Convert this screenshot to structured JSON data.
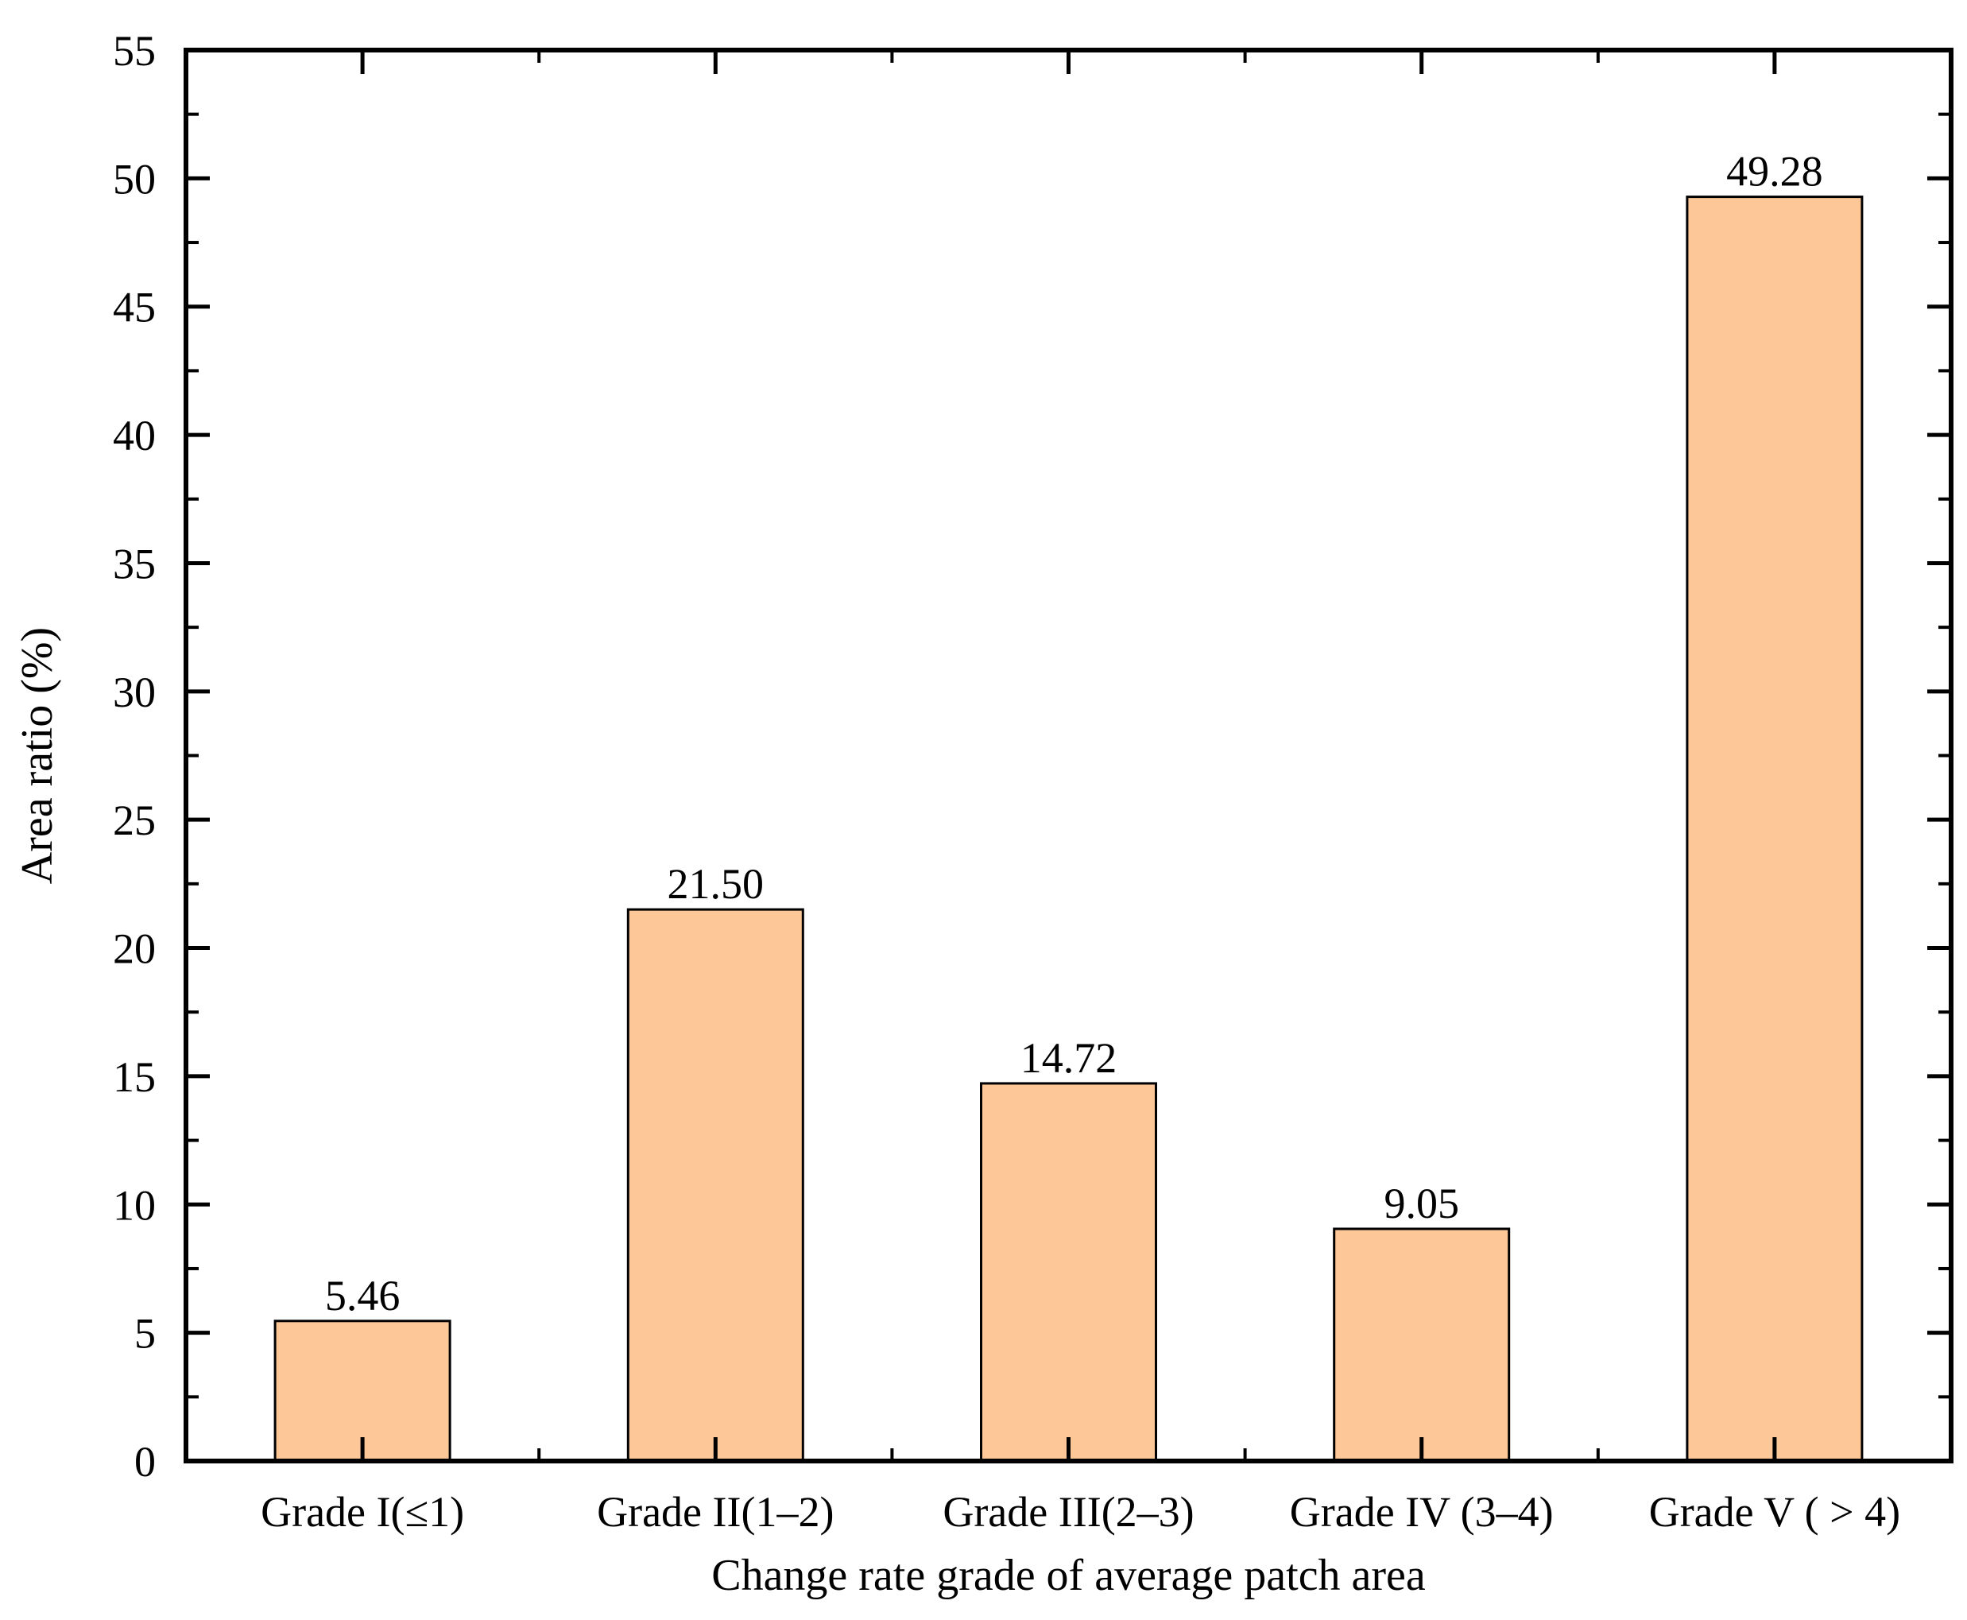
{
  "chart_data": {
    "type": "bar",
    "title": "",
    "xlabel": "Change rate grade of average patch area",
    "ylabel": "Area ratio (%)",
    "categories": [
      "Grade I(≤1)",
      "Grade II(1–2)",
      "Grade III(2–3)",
      "Grade IV (3–4)",
      "Grade V ( > 4)"
    ],
    "values": [
      5.46,
      21.5,
      14.72,
      9.05,
      49.28
    ],
    "data_labels": [
      "5.46",
      "21.50",
      "14.72",
      "9.05",
      "49.28"
    ],
    "ylim": [
      0,
      55
    ],
    "yticks": [
      0,
      5,
      10,
      15,
      20,
      25,
      30,
      35,
      40,
      45,
      50,
      55
    ],
    "grid": false,
    "legend": "none",
    "bar_color": "#FDC797",
    "bar_edge_color": "#000000"
  }
}
